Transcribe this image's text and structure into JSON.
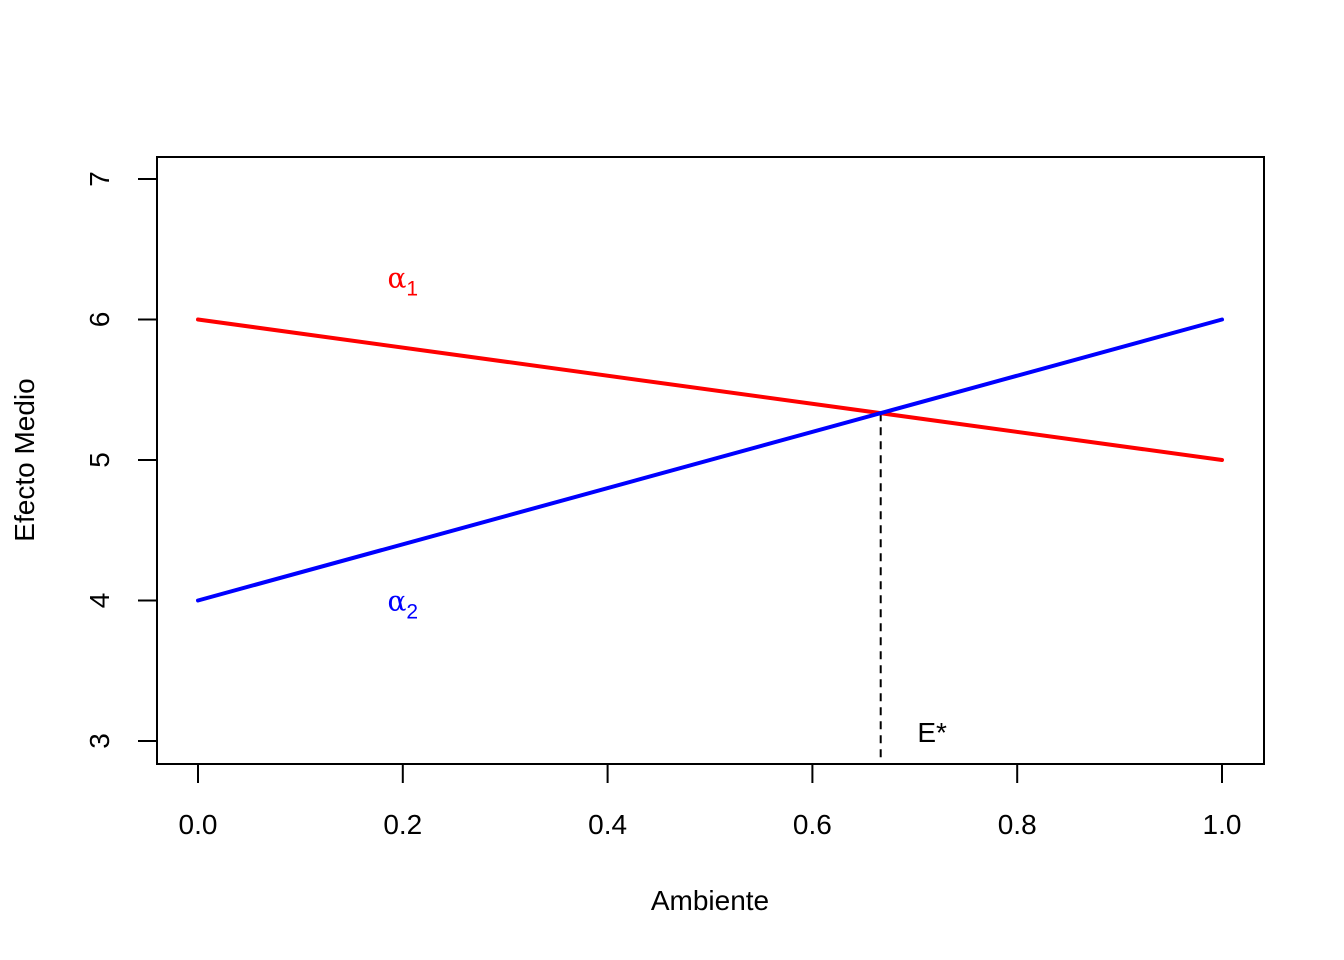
{
  "chart_data": {
    "type": "line",
    "title": "",
    "xlabel": "Ambiente",
    "ylabel": "Efecto Medio",
    "xlim": [
      0.0,
      1.0
    ],
    "ylim": [
      3,
      7
    ],
    "x_ticks": [
      "0.0",
      "0.2",
      "0.4",
      "0.6",
      "0.8",
      "1.0"
    ],
    "y_ticks": [
      "3",
      "4",
      "5",
      "6",
      "7"
    ],
    "grid": false,
    "legend": "none",
    "series": [
      {
        "label_symbol": "α",
        "label_subscript": "1",
        "color": "#ff0000",
        "x": [
          0.0,
          1.0
        ],
        "y": [
          6,
          5
        ],
        "label_at": [
          0.2,
          6.3
        ]
      },
      {
        "label_symbol": "α",
        "label_subscript": "2",
        "color": "#0000ff",
        "x": [
          0.0,
          1.0
        ],
        "y": [
          4,
          6
        ],
        "label_at": [
          0.2,
          4.0
        ]
      }
    ],
    "reference_line": {
      "type": "vertical-dashed",
      "x": 0.6667,
      "y_from": 3,
      "y_to": 5.333,
      "color": "#000000"
    },
    "annotation": {
      "text": "E*",
      "x": 0.715,
      "y": 3.03
    }
  }
}
